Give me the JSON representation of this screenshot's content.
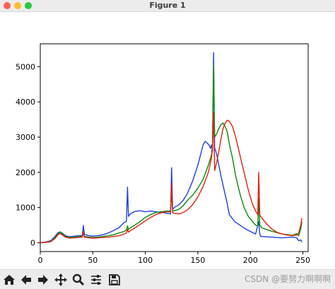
{
  "window": {
    "title": "Figure 1"
  },
  "toolbar": {
    "buttons": [
      {
        "name": "home-icon"
      },
      {
        "name": "back-arrow-icon"
      },
      {
        "name": "forward-arrow-icon"
      },
      {
        "name": "pan-icon"
      },
      {
        "name": "zoom-icon"
      },
      {
        "name": "configure-subplots-icon"
      },
      {
        "name": "save-icon"
      }
    ]
  },
  "watermark": "CSDN @要努力啊啊啊",
  "colors": {
    "blue": "#1f3fe0",
    "green": "#0a8a0a",
    "red": "#e02010"
  },
  "chart_data": {
    "type": "line",
    "title": "",
    "xlabel": "",
    "ylabel": "",
    "xlim": [
      0,
      255
    ],
    "ylim": [
      -250,
      5650
    ],
    "xticks": [
      0,
      50,
      100,
      150,
      200,
      250
    ],
    "yticks": [
      0,
      1000,
      2000,
      3000,
      4000,
      5000
    ],
    "grid": false,
    "series": [
      {
        "color": "#1f3fe0",
        "points": [
          [
            0,
            0
          ],
          [
            5,
            20
          ],
          [
            10,
            60
          ],
          [
            14,
            180
          ],
          [
            17,
            290
          ],
          [
            19,
            310
          ],
          [
            21,
            270
          ],
          [
            24,
            200
          ],
          [
            28,
            170
          ],
          [
            32,
            185
          ],
          [
            36,
            200
          ],
          [
            40,
            210
          ],
          [
            41,
            490
          ],
          [
            42,
            240
          ],
          [
            46,
            200
          ],
          [
            50,
            190
          ],
          [
            55,
            200
          ],
          [
            60,
            230
          ],
          [
            65,
            280
          ],
          [
            70,
            350
          ],
          [
            75,
            430
          ],
          [
            78,
            520
          ],
          [
            80,
            580
          ],
          [
            82,
            600
          ],
          [
            83,
            1580
          ],
          [
            84,
            750
          ],
          [
            86,
            830
          ],
          [
            90,
            890
          ],
          [
            95,
            910
          ],
          [
            100,
            880
          ],
          [
            105,
            900
          ],
          [
            110,
            880
          ],
          [
            115,
            860
          ],
          [
            120,
            840
          ],
          [
            124,
            820
          ],
          [
            125,
            2130
          ],
          [
            126,
            950
          ],
          [
            128,
            1010
          ],
          [
            132,
            1080
          ],
          [
            136,
            1200
          ],
          [
            140,
            1400
          ],
          [
            145,
            1750
          ],
          [
            150,
            2200
          ],
          [
            153,
            2550
          ],
          [
            155,
            2780
          ],
          [
            157,
            2880
          ],
          [
            159,
            2830
          ],
          [
            161,
            2760
          ],
          [
            162,
            2680
          ],
          [
            163,
            2780
          ],
          [
            164,
            2600
          ],
          [
            165,
            5400
          ],
          [
            166,
            2700
          ],
          [
            168,
            2500
          ],
          [
            170,
            2200
          ],
          [
            172,
            1900
          ],
          [
            175,
            1500
          ],
          [
            178,
            1100
          ],
          [
            180,
            800
          ],
          [
            185,
            600
          ],
          [
            190,
            500
          ],
          [
            195,
            400
          ],
          [
            200,
            320
          ],
          [
            205,
            250
          ],
          [
            208,
            600
          ],
          [
            209,
            240
          ],
          [
            210,
            180
          ],
          [
            215,
            170
          ],
          [
            220,
            160
          ],
          [
            225,
            150
          ],
          [
            230,
            140
          ],
          [
            235,
            150
          ],
          [
            240,
            160
          ],
          [
            244,
            140
          ],
          [
            246,
            60
          ],
          [
            248,
            80
          ],
          [
            249,
            20
          ]
        ]
      },
      {
        "color": "#0a8a0a",
        "points": [
          [
            0,
            0
          ],
          [
            5,
            10
          ],
          [
            10,
            40
          ],
          [
            14,
            150
          ],
          [
            17,
            260
          ],
          [
            19,
            300
          ],
          [
            21,
            250
          ],
          [
            24,
            180
          ],
          [
            28,
            150
          ],
          [
            32,
            160
          ],
          [
            36,
            170
          ],
          [
            40,
            180
          ],
          [
            41,
            350
          ],
          [
            42,
            180
          ],
          [
            46,
            160
          ],
          [
            50,
            150
          ],
          [
            55,
            160
          ],
          [
            60,
            180
          ],
          [
            65,
            200
          ],
          [
            70,
            230
          ],
          [
            75,
            280
          ],
          [
            80,
            320
          ],
          [
            82,
            360
          ],
          [
            83,
            480
          ],
          [
            84,
            380
          ],
          [
            86,
            430
          ],
          [
            90,
            500
          ],
          [
            95,
            600
          ],
          [
            100,
            720
          ],
          [
            105,
            800
          ],
          [
            110,
            860
          ],
          [
            115,
            880
          ],
          [
            120,
            900
          ],
          [
            124,
            900
          ],
          [
            125,
            1460
          ],
          [
            126,
            900
          ],
          [
            128,
            910
          ],
          [
            132,
            950
          ],
          [
            136,
            1050
          ],
          [
            140,
            1200
          ],
          [
            145,
            1350
          ],
          [
            150,
            1550
          ],
          [
            155,
            1800
          ],
          [
            160,
            2200
          ],
          [
            163,
            2500
          ],
          [
            164,
            2800
          ],
          [
            165,
            5050
          ],
          [
            166,
            3000
          ],
          [
            168,
            3100
          ],
          [
            170,
            3250
          ],
          [
            172,
            3350
          ],
          [
            174,
            3400
          ],
          [
            176,
            3300
          ],
          [
            178,
            3150
          ],
          [
            180,
            2800
          ],
          [
            183,
            2400
          ],
          [
            186,
            1900
          ],
          [
            190,
            1400
          ],
          [
            194,
            1000
          ],
          [
            198,
            750
          ],
          [
            202,
            600
          ],
          [
            205,
            500
          ],
          [
            207,
            480
          ],
          [
            208,
            1250
          ],
          [
            209,
            500
          ],
          [
            211,
            420
          ],
          [
            215,
            380
          ],
          [
            220,
            330
          ],
          [
            225,
            290
          ],
          [
            230,
            250
          ],
          [
            235,
            230
          ],
          [
            240,
            210
          ],
          [
            244,
            260
          ],
          [
            246,
            200
          ],
          [
            248,
            400
          ],
          [
            249,
            600
          ]
        ]
      },
      {
        "color": "#e02010",
        "points": [
          [
            0,
            0
          ],
          [
            5,
            10
          ],
          [
            10,
            30
          ],
          [
            14,
            120
          ],
          [
            17,
            230
          ],
          [
            19,
            260
          ],
          [
            21,
            220
          ],
          [
            24,
            160
          ],
          [
            28,
            130
          ],
          [
            32,
            140
          ],
          [
            36,
            150
          ],
          [
            40,
            160
          ],
          [
            41,
            300
          ],
          [
            42,
            160
          ],
          [
            46,
            140
          ],
          [
            50,
            130
          ],
          [
            55,
            140
          ],
          [
            60,
            150
          ],
          [
            65,
            160
          ],
          [
            70,
            180
          ],
          [
            75,
            200
          ],
          [
            80,
            250
          ],
          [
            82,
            280
          ],
          [
            83,
            380
          ],
          [
            84,
            300
          ],
          [
            86,
            350
          ],
          [
            90,
            420
          ],
          [
            95,
            520
          ],
          [
            100,
            620
          ],
          [
            105,
            720
          ],
          [
            110,
            800
          ],
          [
            115,
            850
          ],
          [
            120,
            880
          ],
          [
            124,
            880
          ],
          [
            125,
            1700
          ],
          [
            126,
            850
          ],
          [
            128,
            830
          ],
          [
            132,
            820
          ],
          [
            136,
            860
          ],
          [
            140,
            930
          ],
          [
            145,
            1080
          ],
          [
            150,
            1300
          ],
          [
            155,
            1600
          ],
          [
            160,
            2000
          ],
          [
            163,
            2400
          ],
          [
            164,
            2750
          ],
          [
            165,
            3700
          ],
          [
            166,
            2050
          ],
          [
            168,
            2300
          ],
          [
            170,
            2600
          ],
          [
            172,
            2950
          ],
          [
            174,
            3250
          ],
          [
            176,
            3400
          ],
          [
            178,
            3480
          ],
          [
            180,
            3450
          ],
          [
            183,
            3300
          ],
          [
            186,
            3000
          ],
          [
            190,
            2500
          ],
          [
            194,
            2000
          ],
          [
            198,
            1500
          ],
          [
            202,
            1100
          ],
          [
            205,
            900
          ],
          [
            207,
            800
          ],
          [
            208,
            2000
          ],
          [
            209,
            780
          ],
          [
            211,
            700
          ],
          [
            215,
            550
          ],
          [
            220,
            400
          ],
          [
            225,
            300
          ],
          [
            230,
            250
          ],
          [
            235,
            220
          ],
          [
            240,
            200
          ],
          [
            244,
            220
          ],
          [
            246,
            280
          ],
          [
            248,
            500
          ],
          [
            249,
            700
          ]
        ]
      }
    ]
  }
}
